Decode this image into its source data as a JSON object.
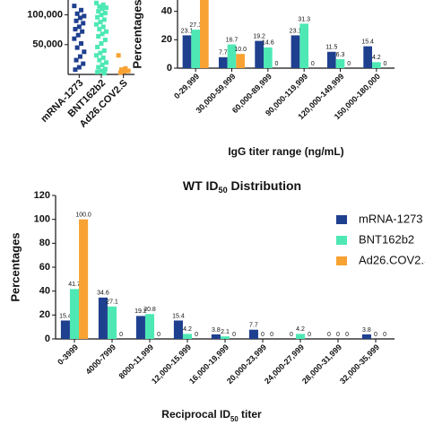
{
  "chart_data": [
    {
      "type": "strip",
      "categories": [
        "mRNA-1273",
        "BNT162b2",
        "Ad26.COV2.S"
      ],
      "series": [
        {
          "name": "mRNA-1273",
          "color": "#1f3f8f",
          "values": [
            115000,
            108000,
            102000,
            98000,
            95000,
            90000,
            86000,
            80000,
            76000,
            72000,
            66000,
            60000,
            52000,
            45000,
            38000,
            30000,
            24000,
            18000,
            12000,
            8000
          ]
        },
        {
          "name": "BNT162b2",
          "color": "#4de8b4",
          "values": [
            120000,
            117000,
            114000,
            112000,
            110000,
            106000,
            103000,
            100000,
            96000,
            92000,
            88000,
            84000,
            80000,
            76000,
            72000,
            68000,
            64000,
            58000,
            52000,
            46000,
            40000,
            36000,
            32000,
            28000,
            24000,
            20000,
            16000,
            12000,
            9000,
            6000,
            4000,
            2000
          ]
        },
        {
          "name": "Ad26.COV2.S",
          "color": "#f7a233",
          "values": [
            32000,
            10000,
            8000,
            6000,
            5000,
            3000
          ]
        }
      ],
      "ylim": [
        0,
        125000
      ],
      "yticks": [
        {
          "value": 50000,
          "label": "50,000"
        },
        {
          "value": 100000,
          "label": "100,000"
        }
      ]
    },
    {
      "type": "bar",
      "ylabel": "Percentages",
      "xlabel": "IgG titer range (ng/mL)",
      "categories": [
        "0-29,999",
        "30,000-59,999",
        "60,000-89,999",
        "90,000-119,999",
        "120,000-149,999",
        "150,000-180,000"
      ],
      "series": [
        {
          "name": "mRNA-1273",
          "color": "#1f3f8f",
          "values": [
            23.1,
            7.7,
            19.2,
            23.1,
            11.5,
            15.4
          ],
          "value_labels": [
            "23.1",
            "7.7",
            "19.2",
            "23.1",
            "11.5",
            "15.4"
          ]
        },
        {
          "name": "BNT162b2",
          "color": "#4de8b4",
          "values": [
            27.1,
            16.7,
            14.6,
            31.3,
            6.3,
            4.2
          ],
          "value_labels": [
            "27.1",
            "16.7",
            "14.6",
            "31.3",
            "6.3",
            "4.2"
          ]
        },
        {
          "name": "Ad26.COV2.S",
          "color": "#f7a233",
          "values": [
            50,
            10,
            0,
            0,
            0,
            0
          ],
          "value_labels": [
            null,
            "10.0",
            "0",
            "0",
            "0",
            "0"
          ]
        }
      ],
      "ylim": [
        0,
        48
      ],
      "yticks": [
        0,
        20,
        40
      ]
    },
    {
      "type": "bar",
      "title_parts": [
        "WT ID",
        "50",
        " Distribution"
      ],
      "ylabel": "Percentages",
      "xlabel_parts": [
        "Reciprocal ID",
        "50",
        " titer"
      ],
      "categories": [
        "0-3999",
        "4000-7999",
        "8000-11,999",
        "12,000-15,999",
        "16,000-19,999",
        "20,000-23,999",
        "24,000-27,999",
        "28,000-31,999",
        "32,000-35,999"
      ],
      "series": [
        {
          "name": "mRNA-1273",
          "color": "#1f3f8f",
          "values": [
            15.4,
            34.6,
            19.2,
            15.4,
            3.8,
            7.7,
            0,
            0,
            3.8
          ],
          "value_labels": [
            "15.4",
            "34.6",
            "19.2",
            "15.4",
            "3.8",
            "7.7",
            "0",
            "0",
            "3.8"
          ]
        },
        {
          "name": "BNT162b2",
          "color": "#4de8b4",
          "values": [
            41.7,
            27.1,
            20.8,
            4.2,
            2.1,
            0,
            4.2,
            0,
            0
          ],
          "value_labels": [
            "41.7",
            "27.1",
            "20.8",
            "4.2",
            "2.1",
            "0",
            "4.2",
            "0",
            "0"
          ]
        },
        {
          "name": "Ad26.COV2.S",
          "color": "#f7a233",
          "values": [
            100,
            0,
            0,
            0,
            0,
            0,
            0,
            0,
            0
          ],
          "value_labels": [
            "100.0",
            "0",
            "0",
            "0",
            "0",
            "0",
            "0",
            "0",
            "0"
          ]
        }
      ],
      "ylim": [
        0,
        120
      ],
      "yticks": [
        0,
        20,
        40,
        60,
        80,
        100,
        120
      ],
      "legend": "right"
    }
  ]
}
